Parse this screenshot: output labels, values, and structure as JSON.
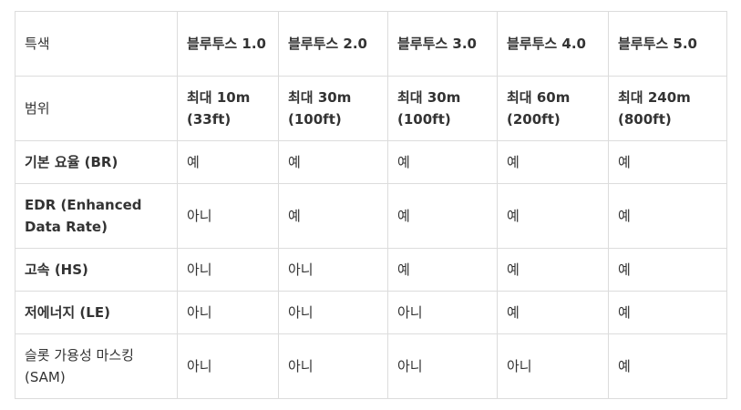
{
  "header": {
    "feature": "특색",
    "versions": [
      "블루투스 1.0",
      "블루투스 2.0",
      "블루투스 3.0",
      "블루투스 4.0",
      "블루투스 5.0"
    ]
  },
  "rows": [
    {
      "feature": "범위",
      "values": [
        "최대 10m (33ft)",
        "최대 30m (100ft)",
        "최대 30m (100ft)",
        "최대 60m (200ft)",
        "최대 240m (800ft)"
      ]
    },
    {
      "feature": "기본 요율 (BR)",
      "values": [
        "예",
        "예",
        "예",
        "예",
        "예"
      ]
    },
    {
      "feature": "EDR (Enhanced Data Rate)",
      "values": [
        "아니",
        "예",
        "예",
        "예",
        "예"
      ]
    },
    {
      "feature": "고속 (HS)",
      "values": [
        "아니",
        "아니",
        "예",
        "예",
        "예"
      ]
    },
    {
      "feature": "저에너지 (LE)",
      "values": [
        "아니",
        "아니",
        "아니",
        "예",
        "예"
      ]
    },
    {
      "feature": "슬롯 가용성 마스킹 (SAM)",
      "values": [
        "아니",
        "아니",
        "아니",
        "아니",
        "예"
      ]
    }
  ]
}
